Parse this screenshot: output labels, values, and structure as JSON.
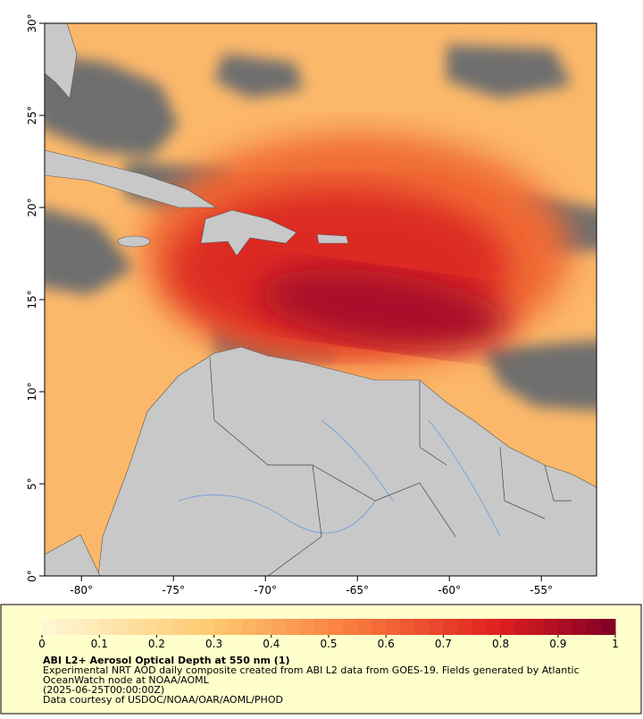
{
  "map": {
    "xlim": [
      -82,
      -52
    ],
    "ylim": [
      0,
      30
    ],
    "xticks": [
      {
        "value": -80,
        "label": "-80°"
      },
      {
        "value": -75,
        "label": "-75°"
      },
      {
        "value": -70,
        "label": "-70°"
      },
      {
        "value": -65,
        "label": "-65°"
      },
      {
        "value": -60,
        "label": "-60°"
      },
      {
        "value": -55,
        "label": "-55°"
      }
    ],
    "yticks": [
      {
        "value": 0,
        "label": "0°"
      },
      {
        "value": 5,
        "label": "5°"
      },
      {
        "value": 10,
        "label": "10°"
      },
      {
        "value": 15,
        "label": "15°"
      },
      {
        "value": 20,
        "label": "20°"
      },
      {
        "value": 25,
        "label": "25°"
      },
      {
        "value": 30,
        "label": "30°"
      }
    ]
  },
  "colorbar": {
    "range": [
      0,
      1
    ],
    "ticks": [
      0,
      0.1,
      0.2,
      0.3,
      0.4,
      0.5,
      0.6,
      0.7,
      0.8,
      0.9,
      1
    ]
  },
  "caption": {
    "title": "ABI L2+ Aerosol Optical Depth at 550 nm (1)",
    "lines": [
      "Experimental NRT AOD daily composite created from ABI L2 data from GOES-19. Fields generated by Atlantic",
      "OceanWatch node at NOAA/AOML",
      "(2025-06-25T00:00:00Z)",
      "Data courtesy of USDOC/NOAA/OAR/AOML/PHOD"
    ]
  }
}
